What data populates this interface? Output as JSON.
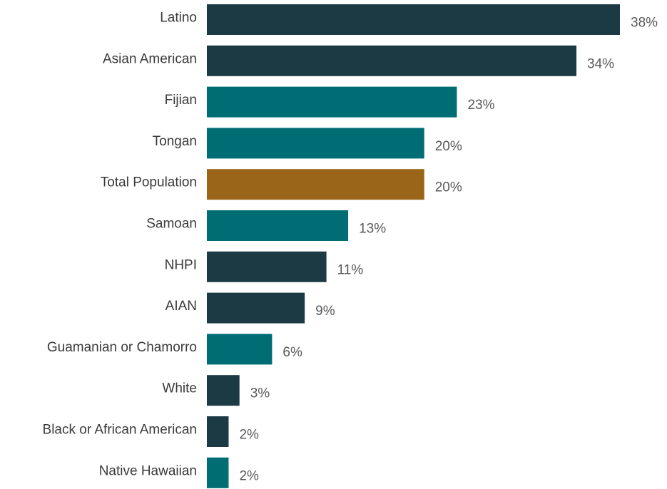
{
  "chart_data": {
    "type": "bar",
    "orientation": "horizontal",
    "categories": [
      "Latino",
      "Asian American",
      "Fijian",
      "Tongan",
      "Total Population",
      "Samoan",
      "NHPI",
      "AIAN",
      "Guamanian or Chamorro",
      "White",
      "Black or African American",
      "Native Hawaiian"
    ],
    "values": [
      38,
      34,
      23,
      20,
      20,
      13,
      11,
      9,
      6,
      3,
      2,
      2
    ],
    "value_labels": [
      "38%",
      "34%",
      "23%",
      "20%",
      "20%",
      "13%",
      "11%",
      "9%",
      "6%",
      "3%",
      "2%",
      "2%"
    ],
    "bar_colors": [
      "#1c3a44",
      "#1c3a44",
      "#006d75",
      "#006d75",
      "#9a6519",
      "#006d75",
      "#1c3a44",
      "#1c3a44",
      "#006d75",
      "#1c3a44",
      "#1c3a44",
      "#006d75"
    ],
    "title": "",
    "xlabel": "",
    "ylabel": "",
    "xlim": [
      0,
      38
    ],
    "grid": false,
    "legend": "none"
  }
}
